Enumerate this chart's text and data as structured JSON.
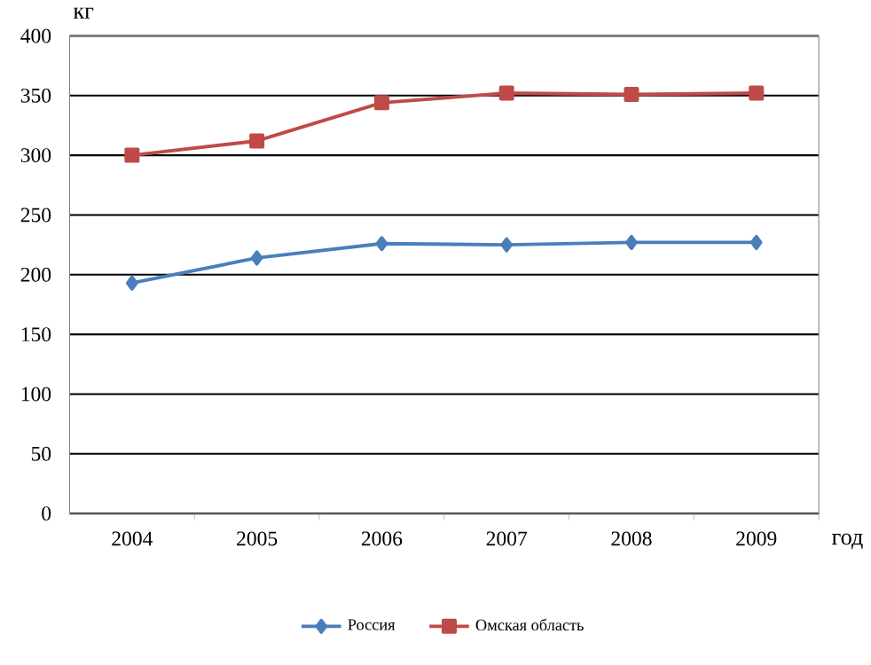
{
  "chart_data": {
    "type": "line",
    "xlabel": "год",
    "ylabel": "кг",
    "categories": [
      "2004",
      "2005",
      "2006",
      "2007",
      "2008",
      "2009"
    ],
    "series": [
      {
        "name": "Россия",
        "color": "#4a7ebb",
        "marker": "diamond",
        "values": [
          193,
          214,
          226,
          225,
          227,
          227
        ]
      },
      {
        "name": "Омская область",
        "color": "#be4b48",
        "marker": "square",
        "values": [
          300,
          312,
          344,
          352,
          351,
          352
        ]
      }
    ],
    "ylim": [
      0,
      400
    ],
    "yticks": [
      0,
      50,
      100,
      150,
      200,
      250,
      300,
      350,
      400
    ],
    "grid": "y",
    "legend": "bottom"
  }
}
